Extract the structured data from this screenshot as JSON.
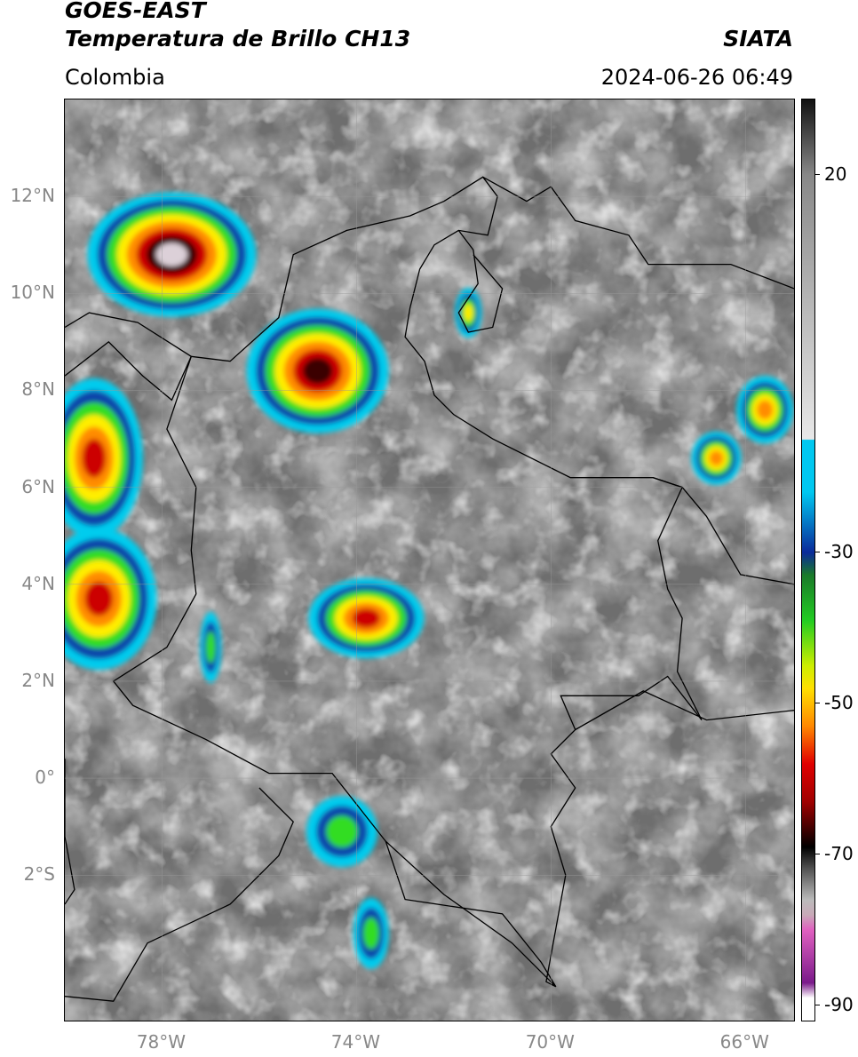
{
  "header": {
    "satellite": "GOES-EAST",
    "product": "Temperatura de Brillo CH13",
    "brand": "SIATA",
    "region": "Colombia",
    "datetime": "2024-06-26 06:49"
  },
  "map": {
    "lat_labels": [
      "12°N",
      "10°N",
      "8°N",
      "6°N",
      "4°N",
      "2°N",
      "0°",
      "2°S"
    ],
    "lat_values": [
      12,
      10,
      8,
      6,
      4,
      2,
      0,
      -2
    ],
    "lon_labels": [
      "78°W",
      "74°W",
      "70°W",
      "66°W"
    ],
    "lon_values": [
      -78,
      -74,
      -70,
      -66
    ],
    "extent": {
      "lon_min": -80,
      "lon_max": -65,
      "lat_min": -5,
      "lat_max": 14
    }
  },
  "colorbar": {
    "tick_labels": [
      "20",
      "-30",
      "-50",
      "-70",
      "-90"
    ],
    "tick_values": [
      20,
      -30,
      -50,
      -70,
      -90
    ],
    "range": [
      -92,
      30
    ],
    "colors": {
      "warm_black": "#111111",
      "cloud_white": "#e8e8e8",
      "cyan": "#00c8f0",
      "blue": "#0a2a9a",
      "green": "#22cc22",
      "yellow": "#ffe000",
      "orange": "#ff8800",
      "red": "#e00000",
      "dark_red": "#500000",
      "magenta": "#e060c0",
      "purple": "#7a1a8a"
    }
  },
  "features": {
    "storm_colors": {
      "core": "#dcd0d8",
      "dark": "#3a0000",
      "red": "#cc0000",
      "orange": "#ff8c00",
      "yellow": "#ffee00",
      "green": "#33dd22",
      "blue": "#1144aa",
      "cyan": "#00ccee"
    }
  }
}
